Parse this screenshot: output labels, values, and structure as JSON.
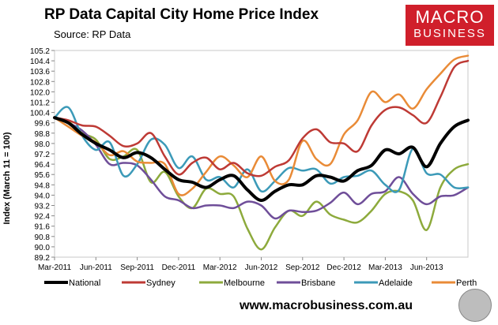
{
  "header": {
    "title": "RP Data Capital City Home Price Index",
    "subtitle": "Source: RP Data"
  },
  "logo": {
    "line1": "MACRO",
    "line2": "BUSINESS"
  },
  "footer": {
    "url": "www.macrobusiness.com.au"
  },
  "colors": {
    "National": "#000000",
    "Sydney": "#be3a35",
    "Melbourne": "#8daa3c",
    "Brisbane": "#6f4e99",
    "Adelaide": "#3c9ab8",
    "Perth": "#e98b37",
    "logo_bg": "#d01f2b"
  },
  "chart_data": {
    "type": "line",
    "title": "RP Data Capital City Home Price Index",
    "subtitle": "Source: RP Data",
    "ylabel": "Index (March 11 = 100)",
    "xlabel": "",
    "ylim": [
      89.2,
      105.2
    ],
    "yticks": [
      "89.2",
      "90.0",
      "90.8",
      "91.6",
      "92.4",
      "93.2",
      "94.0",
      "94.8",
      "95.6",
      "96.4",
      "97.2",
      "98.0",
      "98.8",
      "99.6",
      "100.4",
      "101.2",
      "102.0",
      "102.8",
      "103.6",
      "104.4",
      "105.2"
    ],
    "xlim": [
      "Mar-2011",
      "Sep-2013"
    ],
    "xticks": [
      "Mar-2011",
      "Jun-2011",
      "Sep-2011",
      "Dec-2011",
      "Mar-2012",
      "Jun-2012",
      "Sep-2012",
      "Dec-2012",
      "Mar-2013",
      "Jun-2013"
    ],
    "legend_position": "bottom",
    "x": [
      "Mar-2011",
      "Apr-2011",
      "May-2011",
      "Jun-2011",
      "Jul-2011",
      "Aug-2011",
      "Sep-2011",
      "Oct-2011",
      "Nov-2011",
      "Dec-2011",
      "Jan-2012",
      "Feb-2012",
      "Mar-2012",
      "Apr-2012",
      "May-2012",
      "Jun-2012",
      "Jul-2012",
      "Aug-2012",
      "Sep-2012",
      "Oct-2012",
      "Nov-2012",
      "Dec-2012",
      "Jan-2013",
      "Feb-2013",
      "Mar-2013",
      "Apr-2013",
      "May-2013",
      "Jun-2013",
      "Jul-2013",
      "Aug-2013",
      "Sep-2013"
    ],
    "series": [
      {
        "name": "National",
        "values": [
          100.0,
          99.6,
          98.7,
          98.0,
          97.5,
          96.9,
          97.3,
          96.9,
          96.0,
          95.2,
          95.0,
          94.6,
          95.2,
          95.5,
          94.4,
          93.6,
          94.3,
          94.8,
          94.8,
          95.5,
          95.4,
          95.1,
          95.9,
          96.3,
          97.5,
          97.2,
          97.7,
          96.2,
          98.0,
          99.3,
          99.8
        ]
      },
      {
        "name": "Sydney",
        "values": [
          100.0,
          99.8,
          99.4,
          99.3,
          98.6,
          97.8,
          98.0,
          98.8,
          97.0,
          95.6,
          96.5,
          96.9,
          96.0,
          96.5,
          95.7,
          95.5,
          96.2,
          96.7,
          98.4,
          99.1,
          98.1,
          98.0,
          97.4,
          99.4,
          100.6,
          100.8,
          100.2,
          99.6,
          101.6,
          103.9,
          104.4
        ]
      },
      {
        "name": "Melbourne",
        "values": [
          100.0,
          99.7,
          98.8,
          98.3,
          96.8,
          97.0,
          97.5,
          95.0,
          95.8,
          93.9,
          93.0,
          94.5,
          94.1,
          93.9,
          91.4,
          89.8,
          91.5,
          92.8,
          92.4,
          93.5,
          92.5,
          92.1,
          91.9,
          92.8,
          94.1,
          94.3,
          93.6,
          91.3,
          94.6,
          96.0,
          96.4
        ]
      },
      {
        "name": "Brisbane",
        "values": [
          100.0,
          99.6,
          99.0,
          97.9,
          96.4,
          96.5,
          96.3,
          95.2,
          93.9,
          93.6,
          93.0,
          93.2,
          93.2,
          93.0,
          93.5,
          93.2,
          92.2,
          92.8,
          92.7,
          92.8,
          93.4,
          94.2,
          93.3,
          94.1,
          94.3,
          95.4,
          94.1,
          93.3,
          93.9,
          94.0,
          94.6
        ]
      },
      {
        "name": "Adelaide",
        "values": [
          100.0,
          100.8,
          98.6,
          97.5,
          98.1,
          95.5,
          96.4,
          98.3,
          97.9,
          96.1,
          97.0,
          95.2,
          95.4,
          94.6,
          96.0,
          94.3,
          95.1,
          96.1,
          95.9,
          96.0,
          94.9,
          95.4,
          95.5,
          95.9,
          94.8,
          94.4,
          97.6,
          95.7,
          95.6,
          94.6,
          94.6
        ]
      },
      {
        "name": "Perth",
        "values": [
          100.0,
          99.3,
          98.6,
          98.1,
          97.1,
          97.4,
          96.6,
          96.5,
          96.4,
          94.1,
          94.5,
          95.8,
          97.0,
          96.3,
          95.4,
          97.0,
          95.1,
          95.2,
          98.2,
          96.8,
          96.4,
          98.7,
          99.8,
          102.0,
          101.2,
          101.8,
          100.7,
          102.2,
          103.4,
          104.5,
          104.8
        ]
      }
    ]
  }
}
